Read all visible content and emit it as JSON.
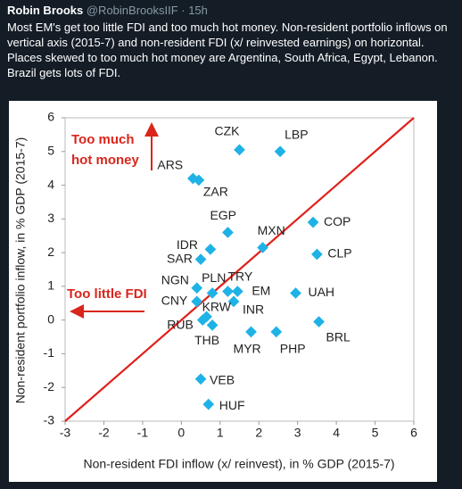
{
  "tweet": {
    "author": "Robin Brooks",
    "handle": "@RobinBrooksIIF · 15h",
    "text": "Most EM's get too little FDI and too much hot money. Non-resident portfolio inflows on vertical axis (2015-7) and non-resident FDI (x/ reinvested earnings) on horizontal. Places skewed to too much hot money are Argentina, South Africa, Egypt, Lebanon. Brazil gets lots of FDI."
  },
  "chart_data": {
    "type": "scatter",
    "x_label": "Non-resident FDI inflow (x/ reinvest), in % GDP (2015-7)",
    "y_label": "Non-resident portfolio inflow, in % GDP (2015-7)",
    "annotations": [
      "Too much",
      "hot money",
      "Too little  FDI"
    ],
    "point_labels": [
      "CZK",
      "LBP",
      "ARS",
      "ZAR",
      "EGP",
      "MXN",
      "IDR",
      "SAR",
      "COP",
      "CLP",
      "NGN",
      "PLN",
      "TRY",
      "EM",
      "CNY",
      "INR",
      "UAH",
      "KRW",
      "RUB",
      "THB",
      "BRL",
      "MYR",
      "PHP",
      "VEB",
      "HUF"
    ],
    "x": [
      1.5,
      2.55,
      0.3,
      0.45,
      1.2,
      2.1,
      0.75,
      0.5,
      3.4,
      3.5,
      0.4,
      0.8,
      1.2,
      1.45,
      0.4,
      1.35,
      2.95,
      0.65,
      0.55,
      0.8,
      3.55,
      1.8,
      2.45,
      0.5,
      0.7
    ],
    "values": [
      5.05,
      5.0,
      4.2,
      4.15,
      2.6,
      2.15,
      2.1,
      1.8,
      2.9,
      1.95,
      0.95,
      0.8,
      0.85,
      0.85,
      0.55,
      0.55,
      0.8,
      0.1,
      0.0,
      -0.15,
      -0.05,
      -0.35,
      -0.35,
      -1.75,
      -2.5
    ],
    "color": "#1fb2e6",
    "line_color": "#e0201b",
    "annotation_color": "#d9261c",
    "xlim": [
      -3,
      6
    ],
    "ylim": [
      -3,
      6
    ],
    "xticks": [
      -3,
      -2,
      -1,
      0,
      1,
      2,
      3,
      4,
      5,
      6
    ],
    "yticks": [
      -3,
      -2,
      -1,
      0,
      1,
      2,
      3,
      4,
      5,
      6
    ]
  }
}
